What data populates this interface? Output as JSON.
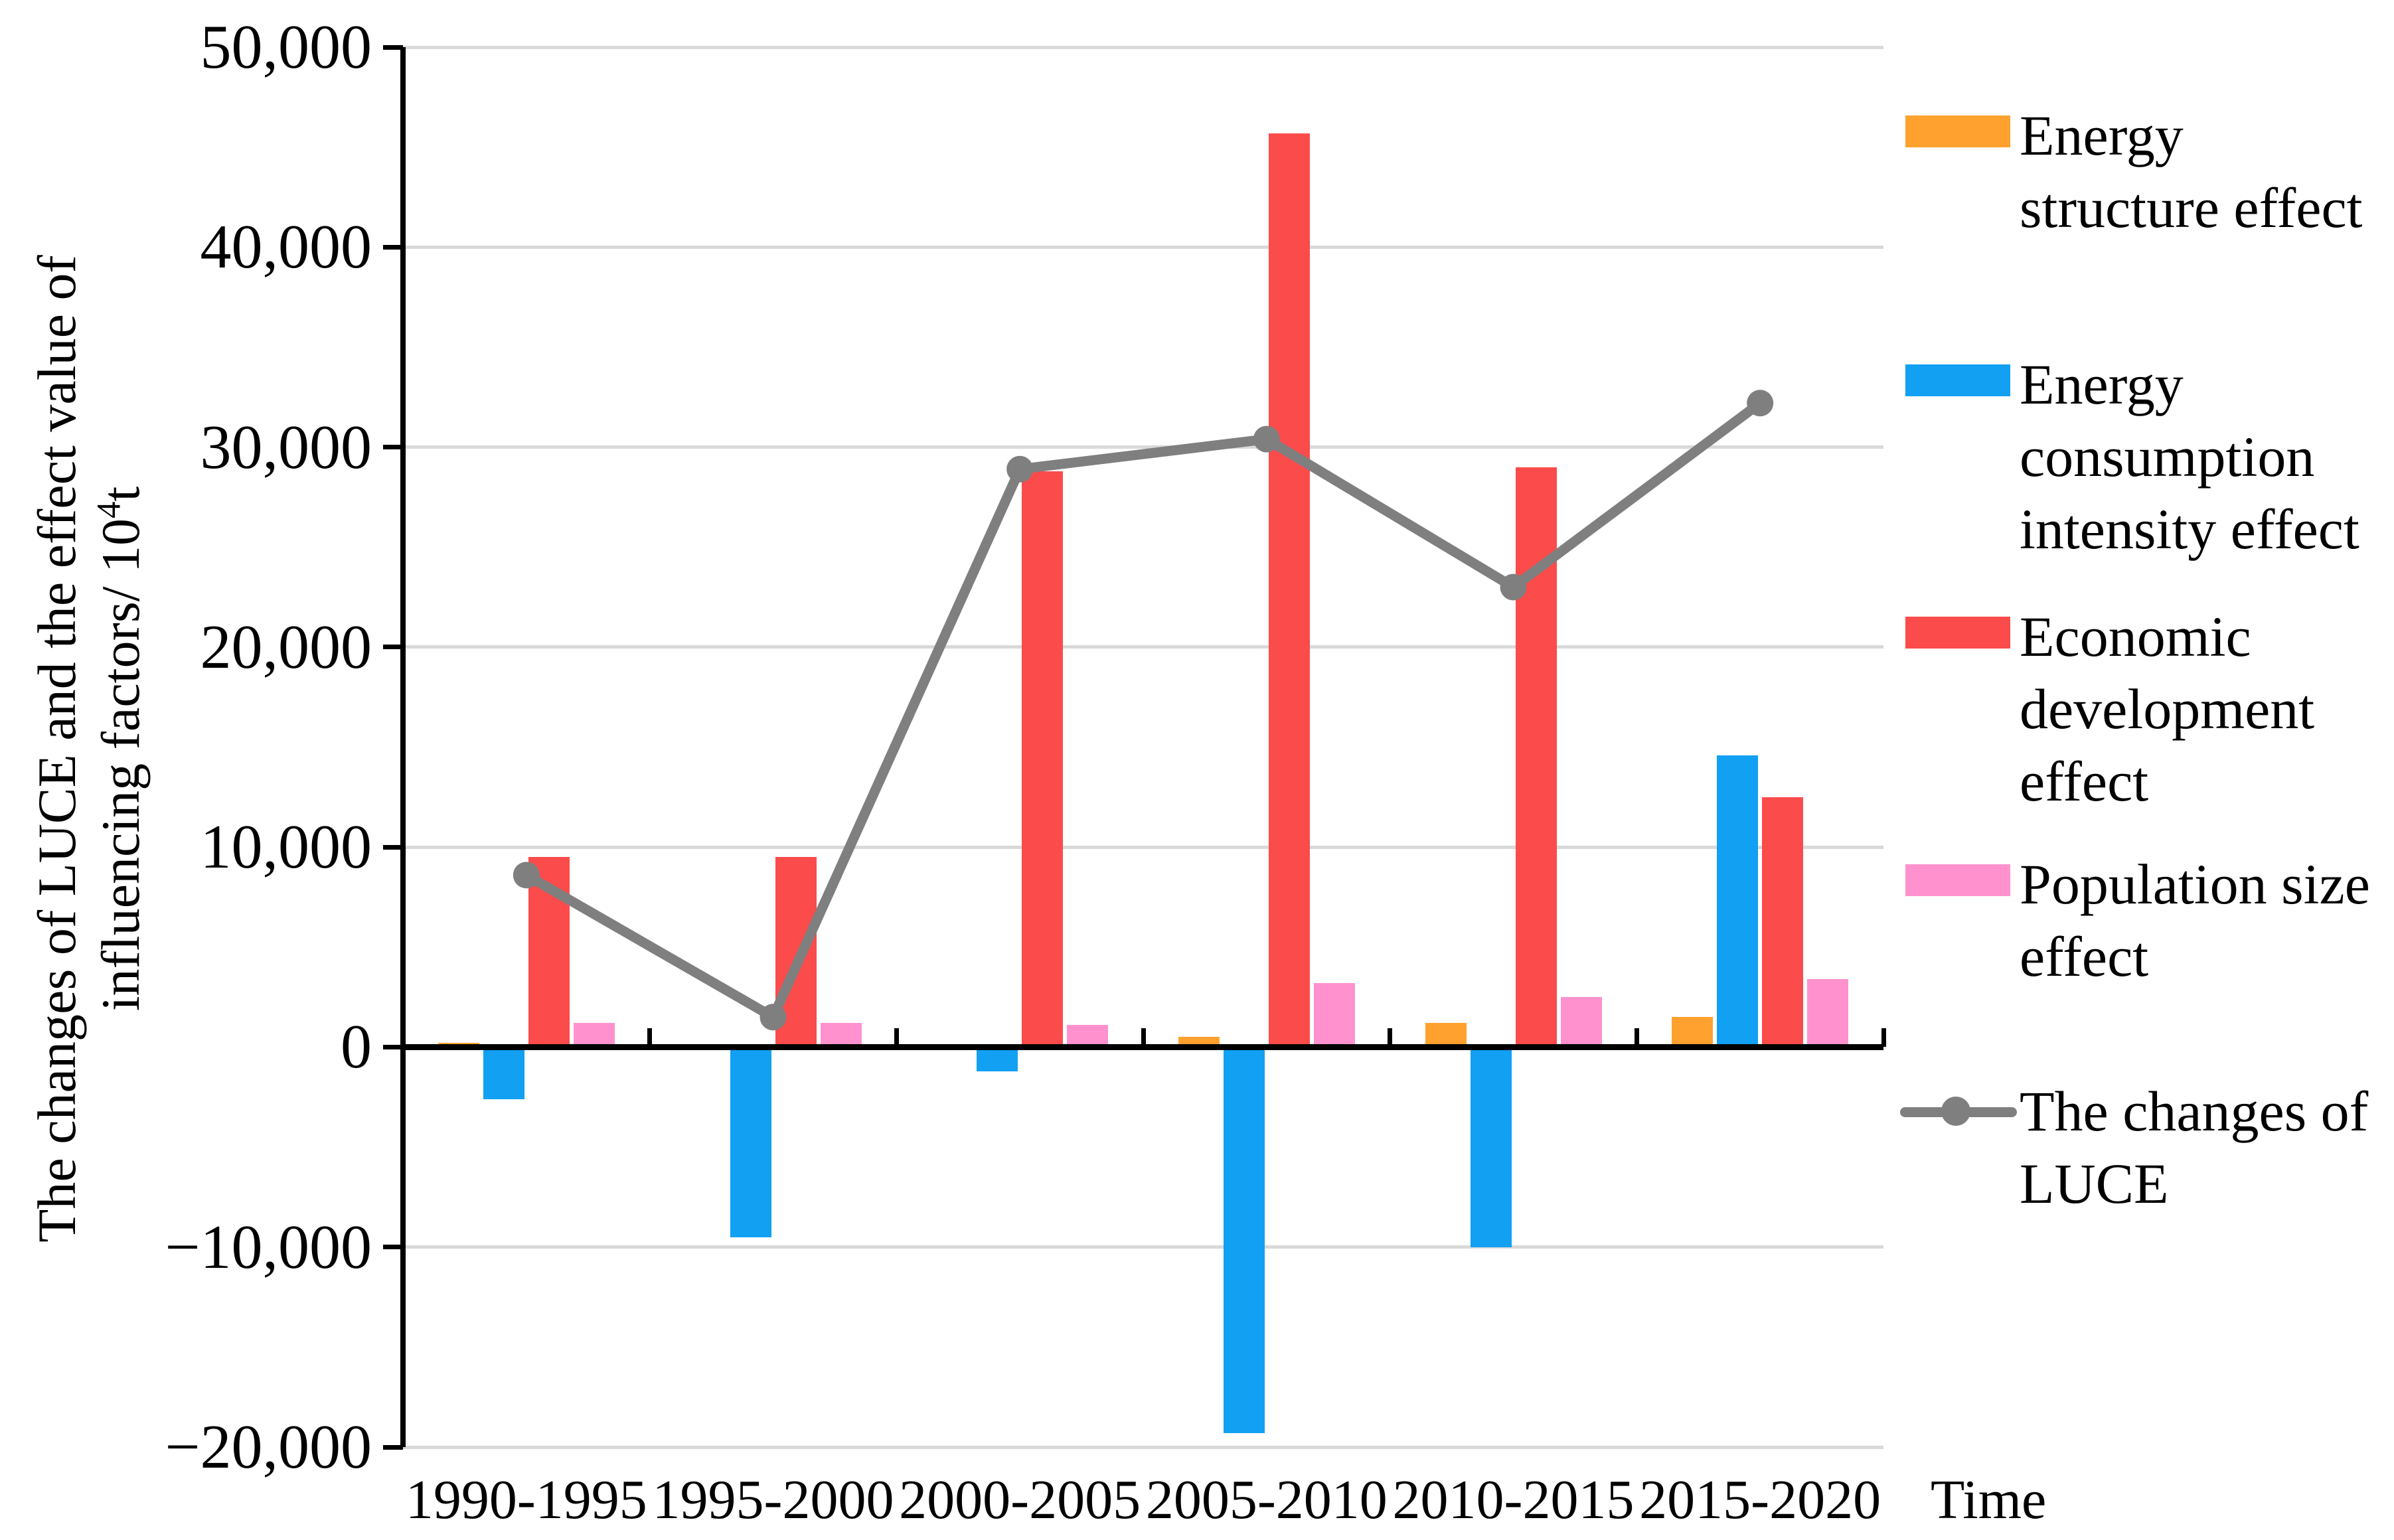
{
  "figure": {
    "time_label": "Time",
    "y_axis_title": {
      "line1": "The changes of LUCE and the effect value of",
      "line2_prefix": "influencing factors/ 10",
      "line2_sup": "4",
      "line2_suffix": "t"
    }
  },
  "colors": {
    "energy_structure": "#FFA12E",
    "energy_consumption_intensity": "#12A0F3",
    "economic_development": "#FB4B4B",
    "population_size": "#FF92CE",
    "luce_line": "#7f7f7f",
    "gridline": "#d9d9d9",
    "axis": "#000000",
    "background": "#ffffff"
  },
  "legend": {
    "items": [
      {
        "id": "energy-structure-effect",
        "marker": "bar",
        "color": "#FFA12E",
        "lines": [
          "Energy",
          "structure effect"
        ]
      },
      {
        "id": "energy-consumption-intensity-effect",
        "marker": "bar",
        "color": "#12A0F3",
        "lines": [
          "Energy",
          "consumption",
          "intensity effect"
        ]
      },
      {
        "id": "economic-development-effect",
        "marker": "bar",
        "color": "#FB4B4B",
        "lines": [
          "Economic",
          "development",
          "effect"
        ]
      },
      {
        "id": "population-size-effect",
        "marker": "bar",
        "color": "#FF92CE",
        "lines": [
          "Population size",
          "effect"
        ]
      },
      {
        "id": "the-changes-of-luce",
        "marker": "line",
        "color": "#7f7f7f",
        "lines": [
          "The changes of",
          "LUCE"
        ]
      }
    ],
    "tops": [
      150,
      525,
      905,
      1278,
      1620
    ]
  },
  "chart_data": {
    "type": "bar",
    "title": "",
    "xlabel": "Time",
    "ylabel": "The changes of LUCE and the effect value of influencing factors/ 10⁴t",
    "categories": [
      "1990-1995",
      "1995-2000",
      "2000-2005",
      "2005-2010",
      "2010-2015",
      "2015-2020"
    ],
    "series": [
      {
        "name": "Energy structure effect",
        "type": "bar",
        "color": "#FFA12E",
        "values": [
          200,
          150,
          0,
          500,
          1200,
          1500
        ]
      },
      {
        "name": "Energy consumption intensity effect",
        "type": "bar",
        "color": "#12A0F3",
        "values": [
          -2600,
          -9500,
          -1200,
          -19300,
          -10000,
          14600
        ]
      },
      {
        "name": "Economic development effect",
        "type": "bar",
        "color": "#FB4B4B",
        "values": [
          9500,
          9500,
          28800,
          45700,
          29000,
          12500
        ]
      },
      {
        "name": "Population size effect",
        "type": "bar",
        "color": "#FF92CE",
        "values": [
          1200,
          1200,
          1100,
          3200,
          2500,
          3400
        ]
      },
      {
        "name": "The changes of LUCE",
        "type": "line",
        "color": "#7f7f7f",
        "values": [
          8600,
          1500,
          28900,
          30400,
          23000,
          32200
        ]
      }
    ],
    "ylim": [
      -20000,
      50000
    ],
    "ytick_step": 10000,
    "ytick_labels": [
      "50,000",
      "40,000",
      "30,000",
      "20,000",
      "10,000",
      "0",
      "−10,000",
      "−20,000"
    ],
    "grid": true,
    "legend_position": "right"
  }
}
